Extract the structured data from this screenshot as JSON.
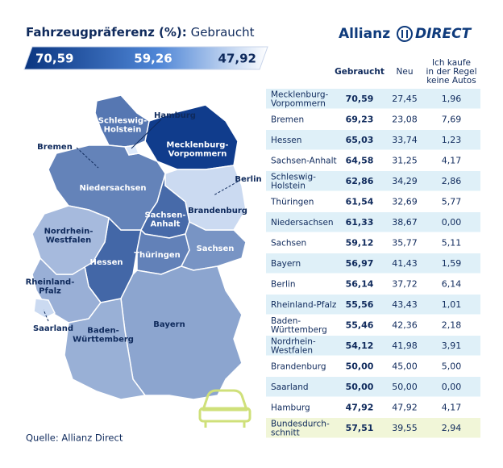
{
  "header": {
    "title_bold": "Fahrzeugpräferenz (%):",
    "title_rest": "Gebraucht",
    "logo_main": "Allianz",
    "logo_sub": "DIRECT"
  },
  "legend": {
    "values": [
      "70,59",
      "59,26",
      "47,92"
    ]
  },
  "table": {
    "header": [
      [
        "Gebraucht"
      ],
      [
        "Neu"
      ],
      [
        "Ich kaufe",
        "in der Regel",
        "keine Autos"
      ]
    ],
    "rows": [
      {
        "name": [
          "Mecklenburg-",
          "Vorpommern"
        ],
        "values": [
          "70,59",
          "27,45",
          "1,96"
        ]
      },
      {
        "name": [
          "Bremen"
        ],
        "values": [
          "69,23",
          "23,08",
          "7,69"
        ]
      },
      {
        "name": [
          "Hessen"
        ],
        "values": [
          "65,03",
          "33,74",
          "1,23"
        ]
      },
      {
        "name": [
          "Sachsen-Anhalt"
        ],
        "values": [
          "64,58",
          "31,25",
          "4,17"
        ]
      },
      {
        "name": [
          "Schleswig-",
          "Holstein"
        ],
        "values": [
          "62,86",
          "34,29",
          "2,86"
        ]
      },
      {
        "name": [
          "Thüringen"
        ],
        "values": [
          "61,54",
          "32,69",
          "5,77"
        ]
      },
      {
        "name": [
          "Niedersachsen"
        ],
        "values": [
          "61,33",
          "38,67",
          "0,00"
        ]
      },
      {
        "name": [
          "Sachsen"
        ],
        "values": [
          "59,12",
          "35,77",
          "5,11"
        ]
      },
      {
        "name": [
          "Bayern"
        ],
        "values": [
          "56,97",
          "41,43",
          "1,59"
        ]
      },
      {
        "name": [
          "Berlin"
        ],
        "values": [
          "56,14",
          "37,72",
          "6,14"
        ]
      },
      {
        "name": [
          "Rheinland-Pfalz"
        ],
        "values": [
          "55,56",
          "43,43",
          "1,01"
        ]
      },
      {
        "name": [
          "Baden-",
          "Württemberg"
        ],
        "values": [
          "55,46",
          "42,36",
          "2,18"
        ]
      },
      {
        "name": [
          "Nordrhein-",
          "Westfalen"
        ],
        "values": [
          "54,12",
          "41,98",
          "3,91"
        ]
      },
      {
        "name": [
          "Brandenburg"
        ],
        "values": [
          "50,00",
          "45,00",
          "5,00"
        ]
      },
      {
        "name": [
          "Saarland"
        ],
        "values": [
          "50,00",
          "50,00",
          "0,00"
        ]
      },
      {
        "name": [
          "Hamburg"
        ],
        "values": [
          "47,92",
          "47,92",
          "4,17"
        ]
      },
      {
        "name": [
          "Bundesdurch-",
          "schnitt"
        ],
        "values": [
          "57,51",
          "39,55",
          "2,94"
        ]
      }
    ]
  },
  "map": {
    "labels": [
      [
        "Mecklenburg-",
        "Vorpommern"
      ],
      [
        "Bremen"
      ],
      [
        "Hessen"
      ],
      [
        "Sachsen-",
        "Anhalt"
      ],
      [
        "Schleswig-",
        "Holstein"
      ],
      [
        "Thüringen"
      ],
      [
        "Niedersachsen"
      ],
      [
        "Sachsen"
      ],
      [
        "Bayern"
      ],
      [
        "Berlin"
      ],
      [
        "Rheinland-",
        "Pfalz"
      ],
      [
        "Baden-",
        "Württemberg"
      ],
      [
        "Nordrhein-",
        "Westfalen"
      ],
      [
        "Brandenburg"
      ],
      [
        "Saarland"
      ],
      [
        "Hamburg"
      ]
    ]
  },
  "footer": {
    "source": "Quelle: Allianz Direct"
  }
}
